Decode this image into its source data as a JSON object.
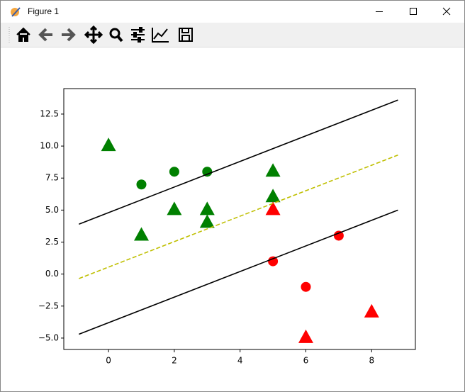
{
  "window": {
    "title": "Figure 1"
  },
  "chart_data": {
    "type": "scatter",
    "xlim": [
      -1.36,
      9.33
    ],
    "ylim": [
      -5.89,
      14.49
    ],
    "xticks": [
      0,
      2,
      4,
      6,
      8
    ],
    "yticks": [
      {
        "value": -5,
        "label": "−5.0"
      },
      {
        "value": -2.5,
        "label": "−2.5"
      },
      {
        "value": 0,
        "label": "0.0"
      },
      {
        "value": 2.5,
        "label": "2.5"
      },
      {
        "value": 5,
        "label": "5.0"
      },
      {
        "value": 7.5,
        "label": "7.5"
      },
      {
        "value": 10,
        "label": "10.0"
      },
      {
        "value": 12.5,
        "label": "12.5"
      }
    ],
    "series": [
      {
        "color": "#008000",
        "marker": "triangle",
        "x": [
          0,
          1,
          2,
          3,
          3,
          5,
          5
        ],
        "values": [
          10,
          3,
          5,
          5,
          4,
          8,
          6
        ]
      },
      {
        "color": "#008000",
        "marker": "circle",
        "x": [
          1,
          2,
          3
        ],
        "values": [
          7,
          8,
          8
        ]
      },
      {
        "color": "#ff0000",
        "marker": "triangle",
        "x": [
          5,
          6,
          8
        ],
        "values": [
          5,
          -5,
          -3
        ]
      },
      {
        "color": "#ff0000",
        "marker": "circle",
        "x": [
          5,
          6,
          7
        ],
        "values": [
          1,
          -1,
          3
        ]
      },
      {
        "color": "#000000",
        "linestyle": "solid",
        "x": [
          -0.9,
          8.8
        ],
        "values": [
          3.9,
          13.6
        ]
      },
      {
        "color": "#bfbf00",
        "linestyle": "dashed",
        "x": [
          -0.9,
          8.8
        ],
        "values": [
          -0.35,
          9.3
        ]
      },
      {
        "color": "#000000",
        "linestyle": "solid",
        "x": [
          -0.9,
          8.8
        ],
        "values": [
          -4.7,
          5.0
        ]
      }
    ]
  }
}
